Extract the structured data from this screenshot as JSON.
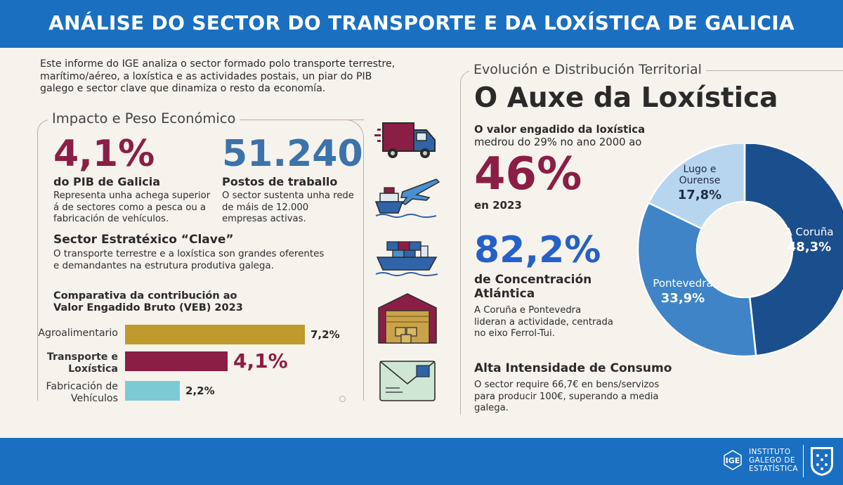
{
  "header": {
    "title": "ANÁLISE DO SECTOR DO TRANSPORTE E DA LOXÍSTICA DE GALICIA"
  },
  "intro": "Este informe do IGE analiza o sector formado polo transporte terrestre, marítimo/aéreo, a loxística e as actividades postais, un piar do PIB galego e sector clave que dinamiza o resto da economía.",
  "impact": {
    "title": "Impacto e Peso Económico",
    "pib": {
      "value": "4,1%",
      "label": "do PIB de Galicia",
      "desc": "Representa unha achega superior á de sectores como a pesca ou a fabricación de vehículos."
    },
    "jobs": {
      "value": "51.240",
      "label": "Postos de traballo",
      "desc": "O sector sustenta unha rede de máis de 12.000 empresas activas."
    },
    "strategic": {
      "title": "Sector Estratéxico “Clave”",
      "desc": "O transporte terrestre e a loxística son grandes oferentes e demandantes na estrutura produtiva galega."
    }
  },
  "chart_data": {
    "type": "bar",
    "title": "Comparativa da contribución ao Valor Engadido Bruto (VEB) 2023",
    "categories": [
      "Agroalimentario",
      "Transporte e Loxística",
      "Fabricación de Vehículos"
    ],
    "values": [
      7.2,
      4.1,
      2.2
    ],
    "value_labels": [
      "7,2%",
      "4,1%",
      "2,2%"
    ],
    "colors": [
      "#bf9a2c",
      "#8b1e45",
      "#7ccad3"
    ]
  },
  "right": {
    "subtitle": "Evolución e Distribución Territorial",
    "title": "O Auxe da Loxística",
    "growth_line1_bold": "O valor engadido da loxística",
    "growth_line2": "medrou do 29% no ano 2000 ao",
    "growth_value": "46%",
    "growth_year": "en 2023",
    "conc_value": "82,2%",
    "conc_label": "de Concentración Atlántica",
    "conc_desc": "A Coruña e Pontevedra lideran a actividade, centrada no eixo Ferrol-Tui.",
    "consumo_title": "Alta Intensidade de Consumo",
    "consumo_desc": "O sector require 66,7€ en bens/servizos para producir 100€, superando a media galega."
  },
  "donut": {
    "slices": [
      {
        "name": "A Coruña",
        "value": 48.3,
        "label": "48,3%",
        "color": "#1b4e8c"
      },
      {
        "name": "Pontevedra",
        "value": 33.9,
        "label": "33,9%",
        "color": "#3f84c6"
      },
      {
        "name": "Lugo e Ourense",
        "value": 17.8,
        "label": "17,8%",
        "color": "#b7d5ee"
      }
    ]
  },
  "icons": [
    "truck-icon",
    "ship-plane-icon",
    "cargo-ship-icon",
    "warehouse-icon",
    "envelope-icon"
  ],
  "footer": {
    "org_line1": "INSTITUTO",
    "org_line2": "GALEGO DE",
    "org_line3": "ESTATÍSTICA"
  }
}
